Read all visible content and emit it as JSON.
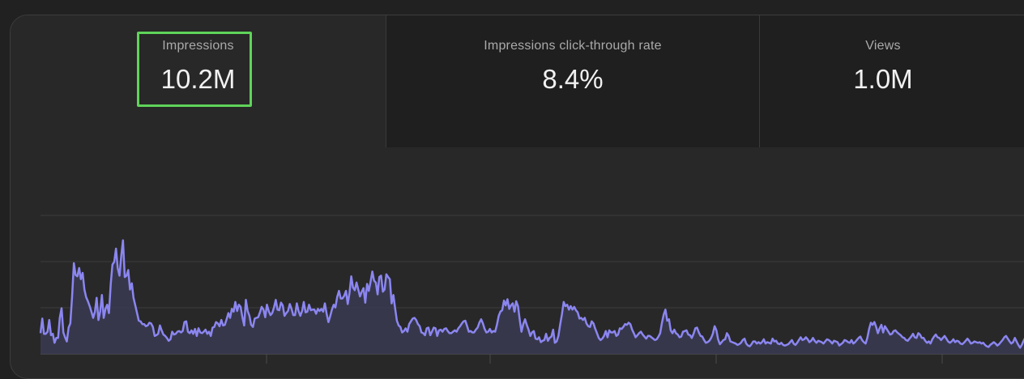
{
  "metrics": [
    {
      "label": "Impressions",
      "value": "10.2M",
      "selected": true
    },
    {
      "label": "Impressions click-through rate",
      "value": "8.4%",
      "selected": false
    },
    {
      "label": "Views",
      "value": "1.0M",
      "selected": false
    }
  ],
  "colors": {
    "line": "#8b86f0",
    "fill": "#3a3952",
    "highlight": "#5fd35a",
    "grid": "#3c3c3c"
  },
  "chart_data": {
    "type": "area",
    "series": [
      {
        "values": [
          3.0,
          5.1,
          2.9,
          2.9,
          3.2,
          4.9,
          2.7,
          2.9,
          1.6,
          2.3,
          2.3,
          5.2,
          6.6,
          3.1,
          2.4,
          1.8,
          3.8,
          4.4,
          8.3,
          13.1,
          11.4,
          11.2,
          12.4,
          10.8,
          11.7,
          9.3,
          8.2,
          7.6,
          6.9,
          6.1,
          5.2,
          6.1,
          8.1,
          4.9,
          6.1,
          8.5,
          5.2,
          6.5,
          7.1,
          5.9,
          10.1,
          12.9,
          13.3,
          15.2,
          12.4,
          11.3,
          14.2,
          16.4,
          11.1,
          11.3,
          12.1,
          9.3,
          10.2,
          8.1,
          7.0,
          5.9,
          4.8,
          4.7,
          4.3,
          4.3,
          4.0,
          4.1,
          4.5,
          4.4,
          3.9,
          2.6,
          2.7,
          2.9,
          4.1,
          3.4,
          2.8,
          2.6,
          2.3,
          1.9,
          2.1,
          3.2,
          2.8,
          2.9,
          3.2,
          3.3,
          3.1,
          3.3,
          4.6,
          4.7,
          3.2,
          3.0,
          3.4,
          2.9,
          3.6,
          2.6,
          3.7,
          3.1,
          3.0,
          3.2,
          3.5,
          2.9,
          3.2,
          2.6,
          3.8,
          3.9,
          4.6,
          4.4,
          4.0,
          4.9,
          4.1,
          4.2,
          5.0,
          5.9,
          5.2,
          6.5,
          6.1,
          7.5,
          6.2,
          7.1,
          6.8,
          5.3,
          4.1,
          7.8,
          6.2,
          5.5,
          4.2,
          3.9,
          5.1,
          5.2,
          5.3,
          6.0,
          6.8,
          6.4,
          5.3,
          7.1,
          6.2,
          5.6,
          5.9,
          6.7,
          7.8,
          6.4,
          6.3,
          7.4,
          7.0,
          5.5,
          5.9,
          6.2,
          7.2,
          6.5,
          5.6,
          5.6,
          7.3,
          6.2,
          5.5,
          6.2,
          7.5,
          6.0,
          6.1,
          7.1,
          6.3,
          6.4,
          6.4,
          5.8,
          6.5,
          6.2,
          6.5,
          6.1,
          7.3,
          5.8,
          4.6,
          5.4,
          6.4,
          7.1,
          6.7,
          8.2,
          9.1,
          8.0,
          8.0,
          8.4,
          9.1,
          7.2,
          8.8,
          11.2,
          9.6,
          9.2,
          10.3,
          9.3,
          8.3,
          9.0,
          9.5,
          7.4,
          10.1,
          9.1,
          10.4,
          11.9,
          10.6,
          10.3,
          8.6,
          11.1,
          11.3,
          9.0,
          9.3,
          11.5,
          11.1,
          10.8,
          7.3,
          8.5,
          6.6,
          4.8,
          4.1,
          3.9,
          3.1,
          3.3,
          3.7,
          3.2,
          4.3,
          4.7,
          5.1,
          5.2,
          4.9,
          4.3,
          4.0,
          3.1,
          3.0,
          2.7,
          3.7,
          3.8,
          2.7,
          3.2,
          3.8,
          3.7,
          2.6,
          3.4,
          3.5,
          3.2,
          3.6,
          3.7,
          3.3,
          3.0,
          3.0,
          3.2,
          3.4,
          3.2,
          3.7,
          4.0,
          4.4,
          4.7,
          4.8,
          4.0,
          3.2,
          3.3,
          3.1,
          3.1,
          3.5,
          3.8,
          4.5,
          5.0,
          4.4,
          3.6,
          3.1,
          3.2,
          3.6,
          3.1,
          3.3,
          3.2,
          4.2,
          5.5,
          6.1,
          6.3,
          7.7,
          7.0,
          7.9,
          6.5,
          7.0,
          7.3,
          6.1,
          7.6,
          6.9,
          4.9,
          3.2,
          4.3,
          5.0,
          4.2,
          3.5,
          2.6,
          3.1,
          3.3,
          2.2,
          2.1,
          2.4,
          1.7,
          1.9,
          2.0,
          2.9,
          1.9,
          2.3,
          2.5,
          3.5,
          1.6,
          1.8,
          2.6,
          4.2,
          5.7,
          7.5,
          6.9,
          7.1,
          6.4,
          6.9,
          6.4,
          6.8,
          6.3,
          6.0,
          5.1,
          5.2,
          4.9,
          5.2,
          4.4,
          4.0,
          3.9,
          4.7,
          4.4,
          3.6,
          3.0,
          2.3,
          2.0,
          2.2,
          2.6,
          3.3,
          2.4,
          3.4,
          3.1,
          3.1,
          3.3,
          2.6,
          2.8,
          3.7,
          3.6,
          3.9,
          4.3,
          4.2,
          4.5,
          4.3,
          3.5,
          3.0,
          2.4,
          2.7,
          3.0,
          3.2,
          2.8,
          2.5,
          2.2,
          2.6,
          2.6,
          2.4,
          2.2,
          2.0,
          2.1,
          2.5,
          3.0,
          4.5,
          5.7,
          6.4,
          4.8,
          5.0,
          3.4,
          3.0,
          3.5,
          3.0,
          2.8,
          2.4,
          2.5,
          3.2,
          3.3,
          3.4,
          2.8,
          2.7,
          2.3,
          2.9,
          3.7,
          3.8,
          3.1,
          2.6,
          2.5,
          2.0,
          1.6,
          1.7,
          1.9,
          2.3,
          2.9,
          4.0,
          3.4,
          2.1,
          1.4,
          1.7,
          2.0,
          2.1,
          3.0,
          2.6,
          1.8,
          1.7,
          1.6,
          1.5,
          1.3,
          1.4,
          1.6,
          2.0,
          2.2,
          1.5,
          1.2,
          1.1,
          1.4,
          1.8,
          1.8,
          1.5,
          1.7,
          1.5,
          1.7,
          2.1,
          1.5,
          1.7,
          1.6,
          1.5,
          2.2,
          1.8,
          1.9,
          1.5,
          1.4,
          1.6,
          1.3,
          1.2,
          1.3,
          1.4,
          1.7,
          2.0,
          1.5,
          1.3,
          1.6,
          2.0,
          2.4,
          2.0,
          2.1,
          2.4,
          2.1,
          1.7,
          1.9,
          2.3,
          1.9,
          1.6,
          1.9,
          1.8,
          1.7,
          1.5,
          1.8,
          2.1,
          2.0,
          1.8,
          1.5,
          1.9,
          1.8,
          1.7,
          1.2,
          1.4,
          1.6,
          2.0,
          1.9,
          1.7,
          1.6,
          2.0,
          1.5,
          1.7,
          2.0,
          2.3,
          2.5,
          2.0,
          1.7,
          1.5,
          2.3,
          3.6,
          4.5,
          4.2,
          4.6,
          3.9,
          3.0,
          3.7,
          4.2,
          3.1,
          4.0,
          3.6,
          3.2,
          2.8,
          2.9,
          3.3,
          3.4,
          3.1,
          2.9,
          2.7,
          2.4,
          2.3,
          2.0,
          1.9,
          2.2,
          2.5,
          2.9,
          2.4,
          2.3,
          3.0,
          2.8,
          2.3,
          2.3,
          1.9,
          1.6,
          1.8,
          1.5,
          2.1,
          2.5,
          2.8,
          2.4,
          2.3,
          2.0,
          2.3,
          2.6,
          2.2,
          1.8,
          1.6,
          1.8,
          2.1,
          1.7,
          1.9,
          1.8,
          1.5,
          1.4,
          1.6,
          1.9,
          2.2,
          1.9,
          1.5,
          1.6,
          1.8,
          1.7,
          1.6,
          1.7,
          1.5,
          1.6,
          1.3,
          1.1,
          1.0,
          1.3,
          1.5,
          1.7,
          1.5,
          1.2,
          1.4,
          1.7,
          2.0,
          2.4,
          2.6,
          2.2,
          1.8,
          1.5,
          1.7,
          2.3,
          1.8,
          1.3,
          0.9,
          1.3,
          1.9,
          2.4,
          2.3,
          1.7,
          1.3,
          1.4,
          1.8,
          2.2,
          1.8,
          1.4
        ]
      }
    ],
    "ylim": [
      0,
      20
    ],
    "grid": true,
    "x_tick_count": 4
  }
}
